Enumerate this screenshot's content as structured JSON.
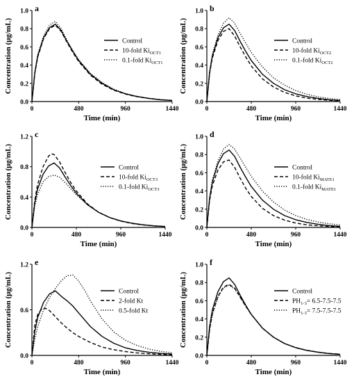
{
  "chart_data": [
    {
      "type": "line",
      "letter": "a",
      "xlabel": "Time (min)",
      "ylabel": "Concentration (μg/mL)",
      "xlim": [
        0,
        1440
      ],
      "ylim": [
        0,
        1.0
      ],
      "xticks": [
        "0",
        "480",
        "960",
        "1440"
      ],
      "yticks": [
        "0.0",
        "0.2",
        "0.4",
        "0.6",
        "0.8",
        "1.0"
      ],
      "legend_position": "right",
      "series": [
        {
          "legend_main": "Control",
          "legend_sub": "",
          "style": "solid",
          "x": [
            0,
            30,
            60,
            120,
            180,
            240,
            300,
            360,
            420,
            480,
            600,
            720,
            840,
            960,
            1080,
            1200,
            1320,
            1440
          ],
          "y": [
            0,
            0.32,
            0.5,
            0.7,
            0.81,
            0.85,
            0.78,
            0.66,
            0.55,
            0.45,
            0.3,
            0.2,
            0.13,
            0.085,
            0.055,
            0.035,
            0.02,
            0.012
          ]
        },
        {
          "legend_main": "10-fold Ki",
          "legend_sub": "OCT1",
          "style": "dashed",
          "x": [
            0,
            30,
            60,
            120,
            180,
            240,
            300,
            360,
            420,
            480,
            600,
            720,
            840,
            960,
            1080,
            1200,
            1320,
            1440
          ],
          "y": [
            0,
            0.31,
            0.49,
            0.69,
            0.8,
            0.84,
            0.77,
            0.65,
            0.54,
            0.44,
            0.29,
            0.19,
            0.125,
            0.082,
            0.053,
            0.034,
            0.02,
            0.012
          ]
        },
        {
          "legend_main": "0.1-fold Ki",
          "legend_sub": "OCT1",
          "style": "dotted",
          "x": [
            0,
            30,
            60,
            120,
            180,
            240,
            300,
            360,
            420,
            480,
            600,
            720,
            840,
            960,
            1080,
            1200,
            1320,
            1440
          ],
          "y": [
            0,
            0.33,
            0.52,
            0.72,
            0.84,
            0.88,
            0.8,
            0.67,
            0.56,
            0.46,
            0.31,
            0.21,
            0.135,
            0.088,
            0.057,
            0.036,
            0.021,
            0.013
          ]
        }
      ]
    },
    {
      "type": "line",
      "letter": "b",
      "xlabel": "Time (min)",
      "ylabel": "Concentration (μg/mL)",
      "xlim": [
        0,
        1440
      ],
      "ylim": [
        0,
        1.0
      ],
      "xticks": [
        "0",
        "480",
        "960",
        "1440"
      ],
      "yticks": [
        "0.0",
        "0.2",
        "0.4",
        "0.6",
        "0.8",
        "1.0"
      ],
      "legend_position": "right",
      "series": [
        {
          "legend_main": "Control",
          "legend_sub": "",
          "style": "solid",
          "x": [
            0,
            30,
            60,
            120,
            180,
            240,
            300,
            360,
            420,
            480,
            600,
            720,
            840,
            960,
            1080,
            1200,
            1320,
            1440
          ],
          "y": [
            0,
            0.32,
            0.5,
            0.7,
            0.81,
            0.85,
            0.78,
            0.66,
            0.55,
            0.45,
            0.3,
            0.2,
            0.13,
            0.085,
            0.055,
            0.035,
            0.02,
            0.012
          ]
        },
        {
          "legend_main": "10-fold Ki",
          "legend_sub": "OCT2",
          "style": "dashed",
          "x": [
            0,
            30,
            60,
            120,
            180,
            240,
            300,
            360,
            420,
            480,
            600,
            720,
            840,
            960,
            1080,
            1200,
            1320,
            1440
          ],
          "y": [
            0,
            0.31,
            0.48,
            0.67,
            0.77,
            0.8,
            0.72,
            0.6,
            0.49,
            0.39,
            0.25,
            0.16,
            0.1,
            0.062,
            0.038,
            0.024,
            0.014,
            0.008
          ]
        },
        {
          "legend_main": "0.1-fold Ki",
          "legend_sub": "OCT2",
          "style": "dotted",
          "x": [
            0,
            30,
            60,
            120,
            180,
            240,
            300,
            360,
            420,
            480,
            600,
            720,
            840,
            960,
            1080,
            1200,
            1320,
            1440
          ],
          "y": [
            0,
            0.33,
            0.52,
            0.73,
            0.86,
            0.92,
            0.86,
            0.75,
            0.64,
            0.54,
            0.38,
            0.26,
            0.18,
            0.12,
            0.08,
            0.052,
            0.034,
            0.022
          ]
        }
      ]
    },
    {
      "type": "line",
      "letter": "c",
      "xlabel": "Time (min)",
      "ylabel": "Concentration (μg/mL)",
      "xlim": [
        0,
        1440
      ],
      "ylim": [
        0,
        1.2
      ],
      "xticks": [
        "0",
        "480",
        "960",
        "1440"
      ],
      "yticks": [
        "0.0",
        "0.4",
        "0.8",
        "1.2"
      ],
      "legend_position": "right",
      "series": [
        {
          "legend_main": "Control",
          "legend_sub": "",
          "style": "solid",
          "x": [
            0,
            30,
            60,
            120,
            180,
            240,
            300,
            360,
            420,
            480,
            600,
            720,
            840,
            960,
            1080,
            1200,
            1320,
            1440
          ],
          "y": [
            0,
            0.32,
            0.5,
            0.7,
            0.81,
            0.85,
            0.78,
            0.66,
            0.55,
            0.45,
            0.3,
            0.2,
            0.13,
            0.085,
            0.055,
            0.035,
            0.02,
            0.012
          ]
        },
        {
          "legend_main": "10-fold Ki",
          "legend_sub": "OCT3",
          "style": "dashed",
          "x": [
            0,
            30,
            60,
            120,
            180,
            210,
            240,
            300,
            360,
            420,
            480,
            600,
            720,
            840,
            960,
            1080,
            1200,
            1320,
            1440
          ],
          "y": [
            0,
            0.35,
            0.56,
            0.8,
            0.94,
            0.97,
            0.96,
            0.86,
            0.72,
            0.59,
            0.48,
            0.31,
            0.2,
            0.13,
            0.082,
            0.052,
            0.033,
            0.02,
            0.012
          ]
        },
        {
          "legend_main": "0.1-fold Ki",
          "legend_sub": "OCT3",
          "style": "dotted",
          "x": [
            0,
            30,
            60,
            120,
            180,
            240,
            300,
            360,
            420,
            480,
            600,
            720,
            840,
            960,
            1080,
            1200,
            1320,
            1440
          ],
          "y": [
            0,
            0.28,
            0.43,
            0.6,
            0.67,
            0.69,
            0.66,
            0.59,
            0.51,
            0.43,
            0.3,
            0.2,
            0.13,
            0.087,
            0.057,
            0.037,
            0.022,
            0.013
          ]
        }
      ]
    },
    {
      "type": "line",
      "letter": "d",
      "xlabel": "Time (min)",
      "ylabel": "Concentration (μg/mL)",
      "xlim": [
        0,
        1440
      ],
      "ylim": [
        0,
        1.0
      ],
      "xticks": [
        "0",
        "480",
        "960",
        "1440"
      ],
      "yticks": [
        "0.0",
        "0.2",
        "0.4",
        "0.6",
        "0.8",
        "1.0"
      ],
      "legend_position": "right",
      "series": [
        {
          "legend_main": "Control",
          "legend_sub": "",
          "style": "solid",
          "x": [
            0,
            30,
            60,
            120,
            180,
            240,
            300,
            360,
            420,
            480,
            600,
            720,
            840,
            960,
            1080,
            1200,
            1320,
            1440
          ],
          "y": [
            0,
            0.32,
            0.5,
            0.7,
            0.81,
            0.85,
            0.78,
            0.66,
            0.55,
            0.45,
            0.3,
            0.2,
            0.13,
            0.085,
            0.055,
            0.035,
            0.02,
            0.012
          ]
        },
        {
          "legend_main": "10-fold Ki",
          "legend_sub": "MATE1",
          "style": "dashed",
          "x": [
            0,
            30,
            60,
            120,
            180,
            240,
            300,
            360,
            420,
            480,
            600,
            720,
            840,
            960,
            1080,
            1200,
            1320,
            1440
          ],
          "y": [
            0,
            0.3,
            0.46,
            0.63,
            0.72,
            0.74,
            0.66,
            0.54,
            0.43,
            0.34,
            0.21,
            0.13,
            0.08,
            0.048,
            0.029,
            0.018,
            0.011,
            0.006
          ]
        },
        {
          "legend_main": "0.1-fold Ki",
          "legend_sub": "MATE1",
          "style": "dotted",
          "x": [
            0,
            30,
            60,
            120,
            180,
            240,
            300,
            360,
            420,
            480,
            600,
            720,
            840,
            960,
            1080,
            1200,
            1320,
            1440
          ],
          "y": [
            0,
            0.33,
            0.52,
            0.73,
            0.86,
            0.91,
            0.86,
            0.76,
            0.66,
            0.56,
            0.4,
            0.28,
            0.19,
            0.13,
            0.088,
            0.06,
            0.04,
            0.027
          ]
        }
      ]
    },
    {
      "type": "line",
      "letter": "e",
      "xlabel": "Time (min)",
      "ylabel": "Concentration (μg/mL)",
      "xlim": [
        0,
        1440
      ],
      "ylim": [
        0,
        1.2
      ],
      "xticks": [
        "0",
        "480",
        "960",
        "1440"
      ],
      "yticks": [
        "0.0",
        "0.6",
        "1.2"
      ],
      "legend_position": "right",
      "series": [
        {
          "legend_main": "Control",
          "legend_sub": "",
          "style": "solid",
          "x": [
            0,
            30,
            60,
            120,
            180,
            240,
            300,
            360,
            420,
            480,
            600,
            720,
            840,
            960,
            1080,
            1200,
            1320,
            1440
          ],
          "y": [
            0,
            0.32,
            0.5,
            0.7,
            0.81,
            0.85,
            0.78,
            0.72,
            0.65,
            0.56,
            0.38,
            0.25,
            0.16,
            0.1,
            0.065,
            0.042,
            0.027,
            0.017
          ]
        },
        {
          "legend_main": "2-fold Kt",
          "legend_sub": "",
          "style": "dashed",
          "x": [
            0,
            30,
            60,
            100,
            140,
            180,
            240,
            300,
            360,
            420,
            480,
            600,
            720,
            840,
            960,
            1080,
            1200,
            1320,
            1440
          ],
          "y": [
            0,
            0.4,
            0.54,
            0.61,
            0.62,
            0.59,
            0.51,
            0.43,
            0.36,
            0.3,
            0.25,
            0.17,
            0.11,
            0.075,
            0.05,
            0.033,
            0.022,
            0.014,
            0.009
          ]
        },
        {
          "legend_main": "0.5-fold Kt",
          "legend_sub": "",
          "style": "dotted",
          "x": [
            0,
            30,
            60,
            120,
            180,
            240,
            300,
            360,
            420,
            480,
            540,
            600,
            720,
            840,
            960,
            1080,
            1200,
            1320,
            1440
          ],
          "y": [
            0,
            0.22,
            0.38,
            0.6,
            0.76,
            0.88,
            0.98,
            1.05,
            1.06,
            0.98,
            0.86,
            0.72,
            0.48,
            0.31,
            0.2,
            0.13,
            0.083,
            0.053,
            0.034
          ]
        }
      ]
    },
    {
      "type": "line",
      "letter": "f",
      "xlabel": "Time (min)",
      "ylabel": "Concentration (μg/mL)",
      "xlim": [
        0,
        1440
      ],
      "ylim": [
        0,
        1.0
      ],
      "xticks": [
        "0",
        "480",
        "960",
        "1440"
      ],
      "yticks": [
        "0.0",
        "0.2",
        "0.4",
        "0.6",
        "0.8",
        "1.0"
      ],
      "legend_position": "right",
      "series": [
        {
          "legend_main": "Control",
          "legend_sub": "",
          "style": "solid",
          "x": [
            0,
            30,
            60,
            120,
            180,
            240,
            300,
            360,
            420,
            480,
            600,
            720,
            840,
            960,
            1080,
            1200,
            1320,
            1440
          ],
          "y": [
            0,
            0.32,
            0.5,
            0.7,
            0.81,
            0.85,
            0.78,
            0.66,
            0.55,
            0.45,
            0.3,
            0.2,
            0.13,
            0.085,
            0.055,
            0.035,
            0.02,
            0.012
          ]
        },
        {
          "legend_pre": "PH",
          "legend_sub": "1-3",
          "legend_main": "= 6.5-7.5-7.5",
          "style": "dashed",
          "x": [
            0,
            30,
            60,
            120,
            180,
            240,
            300,
            360,
            420,
            480,
            600,
            720,
            840,
            960,
            1080,
            1200,
            1320,
            1440
          ],
          "y": [
            0,
            0.29,
            0.46,
            0.65,
            0.75,
            0.78,
            0.74,
            0.64,
            0.54,
            0.45,
            0.3,
            0.2,
            0.13,
            0.086,
            0.056,
            0.036,
            0.021,
            0.013
          ]
        },
        {
          "legend_pre": "PH",
          "legend_sub": "1-3",
          "legend_main": "= 7.5-7.5-7.5",
          "style": "dotted",
          "x": [
            0,
            30,
            60,
            120,
            180,
            240,
            300,
            360,
            420,
            480,
            600,
            720,
            840,
            960,
            1080,
            1200,
            1320,
            1440
          ],
          "y": [
            0,
            0.28,
            0.45,
            0.64,
            0.74,
            0.77,
            0.73,
            0.64,
            0.54,
            0.45,
            0.3,
            0.2,
            0.13,
            0.086,
            0.056,
            0.036,
            0.021,
            0.013
          ]
        }
      ]
    }
  ]
}
